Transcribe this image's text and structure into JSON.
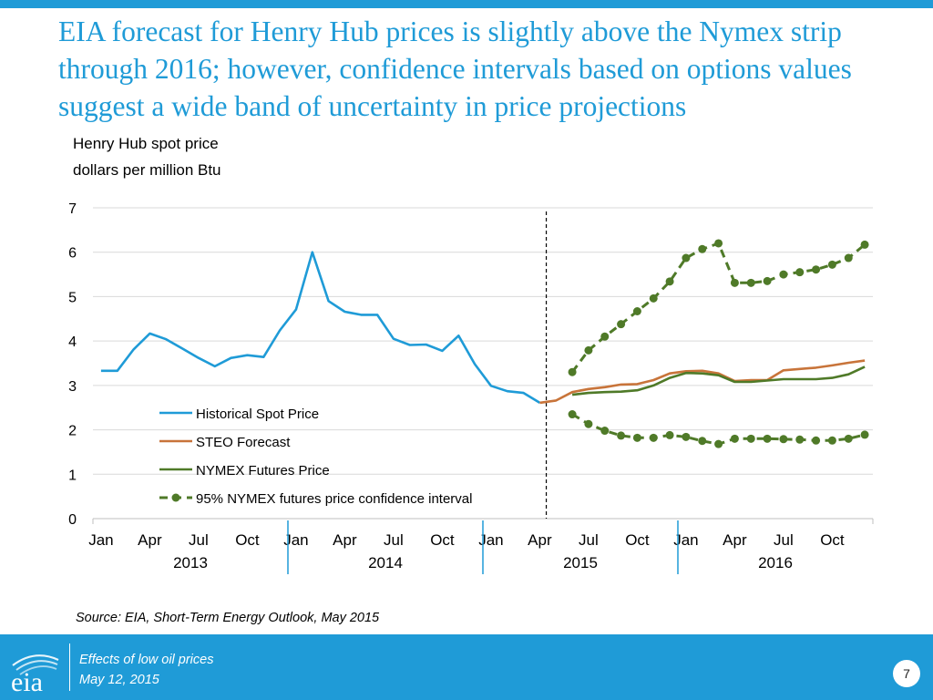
{
  "slide": {
    "title": "EIA forecast for Henry Hub prices is slightly above the Nymex strip through 2016; however, confidence intervals based on options values suggest a wide band of uncertainty in price projections",
    "unit_label_line1": "Henry Hub spot price",
    "unit_label_line2": "dollars per million Btu",
    "source": "Source: EIA, Short-Term Energy Outlook, May 2015",
    "footer_line1": "Effects of low oil prices",
    "footer_line2": "May 12, 2015",
    "page_number": "7",
    "logo_text": "eia"
  },
  "colors": {
    "accent": "#1f9bd7",
    "historical": "#1f9bd7",
    "steo": "#c8743a",
    "nymex": "#4f7a28",
    "confidence": "#4f7a28",
    "grid": "#d9d9d9"
  },
  "chart_data": {
    "type": "line",
    "title": "",
    "ylabel": "Henry Hub spot price, dollars per million Btu",
    "ylim": [
      0,
      7
    ],
    "yticks": [
      0,
      1,
      2,
      3,
      4,
      5,
      6,
      7
    ],
    "grid": true,
    "x_range": [
      1,
      48
    ],
    "x_tick_labels": [
      {
        "month": 1,
        "label": "Jan"
      },
      {
        "month": 4,
        "label": "Apr"
      },
      {
        "month": 7,
        "label": "Jul"
      },
      {
        "month": 10,
        "label": "Oct"
      },
      {
        "month": 13,
        "label": "Jan"
      },
      {
        "month": 16,
        "label": "Apr"
      },
      {
        "month": 19,
        "label": "Jul"
      },
      {
        "month": 22,
        "label": "Oct"
      },
      {
        "month": 25,
        "label": "Jan"
      },
      {
        "month": 28,
        "label": "Apr"
      },
      {
        "month": 31,
        "label": "Jul"
      },
      {
        "month": 34,
        "label": "Oct"
      },
      {
        "month": 37,
        "label": "Jan"
      },
      {
        "month": 40,
        "label": "Apr"
      },
      {
        "month": 43,
        "label": "Jul"
      },
      {
        "month": 46,
        "label": "Oct"
      }
    ],
    "year_labels": [
      {
        "center": 6.5,
        "label": "2013"
      },
      {
        "center": 18.5,
        "label": "2014"
      },
      {
        "center": 30.5,
        "label": "2015"
      },
      {
        "center": 42.5,
        "label": "2016"
      }
    ],
    "year_separators": [
      12.5,
      24.5,
      36.5
    ],
    "forecast_divider_month": 28.4,
    "legend_position": "center-left",
    "series": [
      {
        "name": "Historical Spot Price",
        "style": "solid",
        "color": "#1f9bd7",
        "x": [
          1,
          2,
          3,
          4,
          5,
          6,
          7,
          8,
          9,
          10,
          11,
          12,
          13,
          14,
          15,
          16,
          17,
          18,
          19,
          20,
          21,
          22,
          23,
          24,
          25,
          26,
          27,
          28
        ],
        "values": [
          3.33,
          3.33,
          3.81,
          4.17,
          4.04,
          3.83,
          3.62,
          3.43,
          3.62,
          3.68,
          3.64,
          4.24,
          4.71,
          6.0,
          4.9,
          4.66,
          4.59,
          4.59,
          4.05,
          3.91,
          3.92,
          3.78,
          4.12,
          3.48,
          2.99,
          2.87,
          2.83,
          2.61
        ]
      },
      {
        "name": "STEO Forecast",
        "style": "solid",
        "color": "#c8743a",
        "x": [
          28,
          29,
          30,
          31,
          32,
          33,
          34,
          35,
          36,
          37,
          38,
          39,
          40,
          41,
          42,
          43,
          44,
          45,
          46,
          47,
          48
        ],
        "values": [
          2.61,
          2.66,
          2.85,
          2.92,
          2.96,
          3.02,
          3.03,
          3.12,
          3.27,
          3.32,
          3.33,
          3.27,
          3.1,
          3.12,
          3.12,
          3.34,
          3.37,
          3.4,
          3.45,
          3.51,
          3.56
        ]
      },
      {
        "name": "NYMEX Futures Price",
        "style": "solid",
        "color": "#4f7a28",
        "x": [
          30,
          31,
          32,
          33,
          34,
          35,
          36,
          37,
          38,
          39,
          40,
          41,
          42,
          43,
          44,
          45,
          46,
          47,
          48
        ],
        "values": [
          2.79,
          2.83,
          2.85,
          2.86,
          2.89,
          3.0,
          3.17,
          3.28,
          3.27,
          3.23,
          3.08,
          3.08,
          3.11,
          3.14,
          3.14,
          3.14,
          3.17,
          3.25,
          3.42
        ]
      },
      {
        "name": "95% NYMEX futures price confidence interval",
        "style": "dashed-markers",
        "color": "#4f7a28",
        "x": [
          30,
          31,
          32,
          33,
          34,
          35,
          36,
          37,
          38,
          39,
          40,
          41,
          42,
          43,
          44,
          45,
          46,
          47,
          48
        ],
        "values": [
          3.3,
          3.79,
          4.1,
          4.38,
          4.67,
          4.96,
          5.34,
          5.87,
          6.07,
          6.2,
          5.31,
          5.31,
          5.35,
          5.5,
          5.55,
          5.61,
          5.72,
          5.87,
          6.17
        ]
      },
      {
        "name": "95% NYMEX futures price confidence interval (lower)",
        "legend": false,
        "style": "dashed-markers",
        "color": "#4f7a28",
        "x": [
          30,
          31,
          32,
          33,
          34,
          35,
          36,
          37,
          38,
          39,
          40,
          41,
          42,
          43,
          44,
          45,
          46,
          47,
          48
        ],
        "values": [
          2.35,
          2.13,
          1.98,
          1.87,
          1.82,
          1.82,
          1.88,
          1.84,
          1.75,
          1.68,
          1.8,
          1.8,
          1.8,
          1.79,
          1.78,
          1.76,
          1.76,
          1.8,
          1.89
        ]
      }
    ]
  }
}
